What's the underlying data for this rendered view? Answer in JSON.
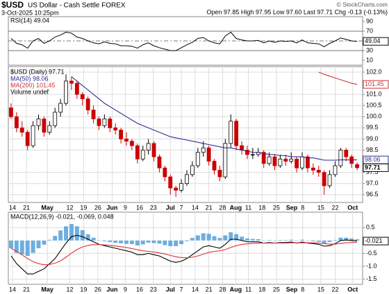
{
  "header": {
    "symbol": "$USD",
    "name": "US Dollar - Cash Settle FOREX",
    "date": "3-Oct-2025 10:25pm",
    "copyright": "© StockCharts.com",
    "quote": "Open 97.85 High 97.95 Low 97.60 Last 97.71 Chg -0.13 (-0.13%)"
  },
  "chart_data": [
    {
      "type": "line",
      "title": "RSI(14) 49.04",
      "color": "#000000",
      "ylim": [
        0,
        100
      ],
      "yticks": [
        90,
        70,
        30,
        10
      ],
      "levels": [
        70,
        30
      ],
      "midline": 50,
      "last_value": 49.04,
      "xlim": [
        -0.5,
        64
      ],
      "values": [
        55,
        45,
        42,
        35,
        50,
        55,
        45,
        50,
        58,
        62,
        68,
        66,
        58,
        55,
        50,
        46,
        44,
        48,
        45,
        44,
        40,
        40,
        39,
        35,
        42,
        46,
        40,
        36,
        33,
        30,
        30,
        36,
        42,
        47,
        55,
        57,
        50,
        46,
        44,
        60,
        68,
        55,
        52,
        50,
        50,
        51,
        46,
        50,
        47,
        50,
        49,
        50,
        46,
        52,
        46,
        45,
        44,
        38,
        45,
        50,
        56,
        53,
        50,
        49.04
      ]
    },
    {
      "type": "candlestick",
      "title": "$USD (Daily) 97.71",
      "annotations": [
        "Volume undef"
      ],
      "up_color": "#000000",
      "down_color": "#cc0000",
      "last_value": 97.71,
      "grid": true,
      "ylim": [
        96.15,
        102.25
      ],
      "xlim": [
        -0.5,
        64
      ],
      "yticks": [
        {
          "value": 102,
          "label": "102.0"
        },
        {
          "value": 101,
          "label": "101.0"
        },
        100.5,
        {
          "value": 100,
          "label": "100.0"
        },
        99.5,
        {
          "value": 99,
          "label": "99.0"
        },
        98.5,
        97.5,
        {
          "value": 97,
          "label": "97.0"
        },
        96.5
      ],
      "xticks": [
        {
          "value": 0.26,
          "label": "14"
        },
        {
          "value": 2.8,
          "label": "21"
        },
        {
          "value": 6.6,
          "label": "May"
        },
        {
          "value": 10.7,
          "label": "12"
        },
        {
          "value": 13.2,
          "label": "19"
        },
        {
          "value": 15.8,
          "label": "26"
        },
        {
          "value": 18.4,
          "label": "Jun"
        },
        {
          "value": 20.8,
          "label": "9"
        },
        {
          "value": 23.4,
          "label": "16"
        },
        {
          "value": 25.9,
          "label": "23"
        },
        {
          "value": 29,
          "label": "Jul"
        },
        {
          "value": 31,
          "label": "7"
        },
        {
          "value": 33.5,
          "label": "14"
        },
        {
          "value": 36,
          "label": "21"
        },
        {
          "value": 38.5,
          "label": "28"
        },
        {
          "value": 40.9,
          "label": "Aug"
        },
        {
          "value": 43.2,
          "label": "11"
        },
        {
          "value": 45.7,
          "label": "18"
        },
        {
          "value": 48.3,
          "label": "25"
        },
        {
          "value": 51.1,
          "label": "Sep"
        },
        {
          "value": 53.1,
          "label": "8"
        },
        {
          "value": 56.4,
          "label": "15"
        },
        {
          "value": 59,
          "label": "22"
        },
        {
          "value": 62.2,
          "label": "Oct"
        }
      ],
      "ohlc": [
        [
          100.4,
          100.6,
          99.9,
          100.0
        ],
        [
          100.0,
          100.2,
          99.3,
          99.5
        ],
        [
          99.5,
          99.8,
          99.1,
          99.3
        ],
        [
          99.3,
          99.4,
          98.5,
          98.7
        ],
        [
          98.7,
          99.8,
          98.6,
          99.6
        ],
        [
          99.6,
          100.1,
          99.4,
          99.9
        ],
        [
          99.9,
          100.0,
          99.1,
          99.3
        ],
        [
          99.3,
          99.8,
          99.2,
          99.6
        ],
        [
          99.6,
          100.4,
          99.5,
          100.2
        ],
        [
          100.2,
          100.8,
          100.0,
          100.6
        ],
        [
          100.6,
          101.9,
          100.5,
          101.6
        ],
        [
          101.6,
          101.8,
          101.2,
          101.5
        ],
        [
          101.5,
          101.6,
          100.8,
          101.0
        ],
        [
          101.0,
          101.1,
          100.5,
          100.8
        ],
        [
          100.8,
          100.9,
          100.1,
          100.3
        ],
        [
          100.3,
          100.5,
          99.7,
          99.9
        ],
        [
          99.9,
          100.0,
          99.4,
          99.6
        ],
        [
          99.6,
          100.1,
          99.5,
          99.9
        ],
        [
          99.9,
          100.0,
          99.3,
          99.5
        ],
        [
          99.5,
          99.7,
          99.2,
          99.4
        ],
        [
          99.4,
          99.5,
          98.8,
          99.0
        ],
        [
          99.0,
          99.3,
          98.7,
          98.9
        ],
        [
          98.9,
          99.0,
          98.5,
          98.7
        ],
        [
          98.7,
          98.8,
          97.9,
          98.1
        ],
        [
          98.1,
          98.7,
          98.0,
          98.5
        ],
        [
          98.5,
          99.0,
          98.3,
          98.8
        ],
        [
          98.8,
          98.9,
          98.0,
          98.2
        ],
        [
          98.2,
          98.3,
          97.5,
          97.7
        ],
        [
          97.7,
          97.8,
          97.1,
          97.3
        ],
        [
          97.3,
          97.4,
          96.5,
          96.8
        ],
        [
          96.8,
          96.9,
          96.4,
          96.7
        ],
        [
          96.7,
          97.2,
          96.6,
          97.0
        ],
        [
          97.0,
          97.6,
          96.9,
          97.4
        ],
        [
          97.4,
          98.0,
          97.3,
          97.8
        ],
        [
          97.8,
          98.6,
          97.7,
          98.4
        ],
        [
          98.4,
          98.9,
          98.2,
          98.6
        ],
        [
          98.6,
          98.7,
          97.8,
          98.0
        ],
        [
          98.0,
          98.1,
          97.4,
          97.6
        ],
        [
          97.6,
          97.8,
          97.1,
          97.3
        ],
        [
          97.3,
          99.0,
          97.2,
          98.8
        ],
        [
          98.8,
          100.1,
          98.6,
          99.8
        ],
        [
          99.8,
          99.9,
          98.5,
          98.7
        ],
        [
          98.7,
          98.9,
          98.3,
          98.5
        ],
        [
          98.5,
          98.7,
          98.1,
          98.3
        ],
        [
          98.3,
          98.6,
          98.1,
          98.3
        ],
        [
          98.3,
          98.6,
          98.2,
          98.4
        ],
        [
          98.4,
          98.5,
          97.7,
          97.9
        ],
        [
          97.9,
          98.4,
          97.8,
          98.2
        ],
        [
          98.2,
          98.3,
          97.6,
          97.8
        ],
        [
          97.8,
          98.3,
          97.7,
          98.1
        ],
        [
          98.1,
          98.3,
          97.8,
          98.0
        ],
        [
          98.0,
          98.4,
          97.9,
          98.1
        ],
        [
          98.1,
          98.2,
          97.5,
          97.7
        ],
        [
          97.7,
          98.4,
          97.6,
          98.2
        ],
        [
          98.2,
          98.3,
          97.5,
          97.7
        ],
        [
          97.7,
          97.9,
          97.4,
          97.6
        ],
        [
          97.6,
          97.8,
          97.3,
          97.5
        ],
        [
          97.5,
          97.6,
          96.5,
          96.9
        ],
        [
          96.9,
          97.6,
          96.8,
          97.4
        ],
        [
          97.4,
          98.0,
          97.3,
          97.8
        ],
        [
          97.8,
          98.6,
          97.7,
          98.5
        ],
        [
          98.5,
          98.6,
          98.0,
          98.2
        ],
        [
          98.2,
          98.3,
          97.7,
          97.9
        ],
        [
          97.85,
          97.95,
          97.6,
          97.71
        ]
      ],
      "series": [
        {
          "name": "MA(50) 98.06",
          "color": "#2e2e8f",
          "last_value": 98.06,
          "values": [
            null,
            null,
            null,
            null,
            null,
            null,
            null,
            null,
            null,
            null,
            null,
            101.8,
            101.6,
            101.4,
            101.2,
            101.0,
            100.8,
            100.6,
            100.45,
            100.3,
            100.15,
            100.0,
            99.85,
            99.7,
            99.6,
            99.5,
            99.4,
            99.3,
            99.2,
            99.1,
            99.05,
            99.0,
            98.95,
            98.9,
            98.85,
            98.8,
            98.75,
            98.7,
            98.65,
            98.6,
            98.6,
            98.55,
            98.5,
            98.45,
            98.4,
            98.4,
            98.35,
            98.3,
            98.3,
            98.25,
            98.25,
            98.2,
            98.2,
            98.2,
            98.15,
            98.15,
            98.1,
            98.05,
            98.05,
            98.05,
            98.06,
            98.06,
            98.06,
            98.06
          ]
        },
        {
          "name": "MA(200) 101.45",
          "color": "#cc3333",
          "last_value": 101.45,
          "values": [
            null,
            null,
            null,
            null,
            null,
            null,
            null,
            null,
            null,
            null,
            null,
            null,
            null,
            null,
            null,
            null,
            null,
            null,
            null,
            null,
            null,
            null,
            null,
            null,
            null,
            null,
            null,
            null,
            null,
            null,
            null,
            null,
            null,
            null,
            null,
            null,
            null,
            null,
            null,
            null,
            null,
            null,
            null,
            null,
            null,
            null,
            null,
            null,
            null,
            null,
            null,
            null,
            null,
            null,
            null,
            null,
            102.0,
            101.9,
            101.82,
            101.74,
            101.66,
            101.58,
            101.5,
            101.45
          ]
        }
      ]
    },
    {
      "type": "macd",
      "title": "MACD(12,26,9) -0.021, -0.069, 0.048",
      "last_value": -0.021,
      "ylim": [
        -1.7,
        1.1
      ],
      "xlim": [
        -0.5,
        64
      ],
      "grid": true,
      "yticks": [
        0.5,
        -0.5,
        {
          "value": -1,
          "label": "-1.0"
        },
        -1.5
      ],
      "xticks": [
        {
          "value": 0.26,
          "label": "14"
        },
        {
          "value": 2.8,
          "label": "21"
        },
        {
          "value": 6.6,
          "label": "May"
        },
        {
          "value": 10.7,
          "label": "12"
        },
        {
          "value": 13.2,
          "label": "19"
        },
        {
          "value": 15.8,
          "label": "26"
        },
        {
          "value": 18.4,
          "label": "Jun"
        },
        {
          "value": 20.8,
          "label": "9"
        },
        {
          "value": 23.4,
          "label": "16"
        },
        {
          "value": 25.9,
          "label": "23"
        },
        {
          "value": 29,
          "label": "Jul"
        },
        {
          "value": 31,
          "label": "7"
        },
        {
          "value": 33.5,
          "label": "14"
        },
        {
          "value": 36,
          "label": "21"
        },
        {
          "value": 38.5,
          "label": "28"
        },
        {
          "value": 40.9,
          "label": "Aug"
        },
        {
          "value": 43.2,
          "label": "11"
        },
        {
          "value": 45.7,
          "label": "18"
        },
        {
          "value": 48.3,
          "label": "25"
        },
        {
          "value": 51.1,
          "label": "Sep"
        },
        {
          "value": 53.1,
          "label": "8"
        },
        {
          "value": 56.4,
          "label": "15"
        },
        {
          "value": 59,
          "label": "22"
        },
        {
          "value": 62.2,
          "label": "Oct"
        }
      ],
      "histogram": {
        "color": "#4a9ad8",
        "values": [
          -0.3,
          -0.48,
          -0.54,
          -0.6,
          -0.48,
          -0.3,
          -0.16,
          0.03,
          0.18,
          0.39,
          0.55,
          0.64,
          0.55,
          0.4,
          0.24,
          0.11,
          0.01,
          -0.03,
          -0.06,
          -0.09,
          -0.11,
          -0.13,
          -0.14,
          -0.19,
          -0.15,
          -0.08,
          -0.1,
          -0.12,
          -0.18,
          -0.22,
          -0.22,
          -0.14,
          -0.03,
          0.1,
          0.2,
          0.28,
          0.26,
          0.17,
          0.1,
          0.2,
          0.32,
          0.25,
          0.15,
          0.08,
          0.06,
          0.05,
          0.0,
          0.02,
          0.0,
          0.02,
          0.02,
          0.03,
          -0.01,
          0.03,
          -0.01,
          -0.03,
          -0.05,
          -0.1,
          -0.06,
          0.02,
          0.11,
          0.11,
          0.08,
          0.048
        ]
      },
      "lines": [
        {
          "color": "#000000",
          "values": [
            -0.6,
            -0.9,
            -1.1,
            -1.3,
            -1.3,
            -1.2,
            -1.1,
            -0.9,
            -0.7,
            -0.4,
            -0.1,
            0.15,
            0.2,
            0.15,
            0.05,
            -0.05,
            -0.15,
            -0.2,
            -0.25,
            -0.3,
            -0.35,
            -0.4,
            -0.45,
            -0.55,
            -0.55,
            -0.5,
            -0.55,
            -0.6,
            -0.7,
            -0.8,
            -0.85,
            -0.8,
            -0.7,
            -0.55,
            -0.4,
            -0.25,
            -0.2,
            -0.25,
            -0.3,
            -0.15,
            0.05,
            0.05,
            0.0,
            -0.05,
            -0.05,
            -0.05,
            -0.1,
            -0.08,
            -0.1,
            -0.08,
            -0.08,
            -0.06,
            -0.1,
            -0.06,
            -0.1,
            -0.12,
            -0.15,
            -0.22,
            -0.2,
            -0.12,
            0.0,
            0.02,
            0.0,
            -0.021
          ]
        },
        {
          "color": "#e03030",
          "values": [
            -0.3,
            -0.42,
            -0.56,
            -0.7,
            -0.82,
            -0.9,
            -0.94,
            -0.93,
            -0.88,
            -0.79,
            -0.65,
            -0.49,
            -0.35,
            -0.25,
            -0.19,
            -0.16,
            -0.16,
            -0.17,
            -0.19,
            -0.21,
            -0.24,
            -0.27,
            -0.31,
            -0.36,
            -0.4,
            -0.42,
            -0.45,
            -0.48,
            -0.52,
            -0.58,
            -0.63,
            -0.66,
            -0.67,
            -0.65,
            -0.6,
            -0.53,
            -0.46,
            -0.42,
            -0.4,
            -0.35,
            -0.27,
            -0.2,
            -0.15,
            -0.13,
            -0.11,
            -0.1,
            -0.1,
            -0.1,
            -0.1,
            -0.1,
            -0.1,
            -0.09,
            -0.09,
            -0.09,
            -0.09,
            -0.09,
            -0.1,
            -0.12,
            -0.14,
            -0.14,
            -0.11,
            -0.09,
            -0.08,
            -0.069
          ]
        }
      ]
    }
  ]
}
